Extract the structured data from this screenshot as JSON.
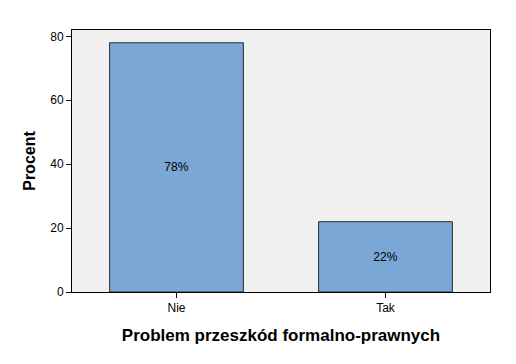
{
  "chart_data": {
    "type": "bar",
    "x_label": "Problem przeszkód formalno-prawnych",
    "y_label": "Procent",
    "categories": [
      "Nie",
      "Tak"
    ],
    "values": [
      78,
      22
    ],
    "value_labels": [
      "78%",
      "22%"
    ],
    "data_labels": true,
    "color": "#7ba7d6",
    "ylim": [
      0,
      82
    ],
    "yticks": [
      0,
      20,
      40,
      60,
      80
    ],
    "grid": false
  }
}
